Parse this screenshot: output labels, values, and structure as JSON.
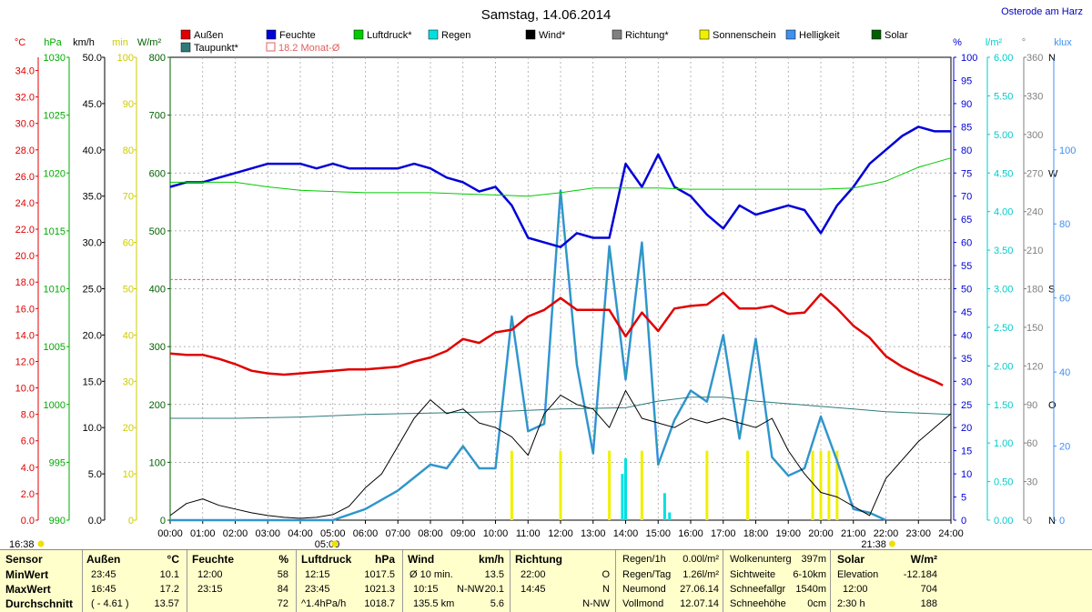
{
  "header": {
    "title": "Samstag, 14.06.2014",
    "location": "Osterode am Harz"
  },
  "legend": [
    {
      "label": "Außen",
      "color": "#e00000",
      "kind": "box"
    },
    {
      "label": "Feuchte",
      "color": "#0000d8",
      "kind": "box"
    },
    {
      "label": "Luftdruck*",
      "color": "#00cc00",
      "kind": "box"
    },
    {
      "label": "Regen",
      "color": "#00e0e0",
      "kind": "box"
    },
    {
      "label": "Wind*",
      "color": "#000000",
      "kind": "box"
    },
    {
      "label": "Richtung*",
      "color": "#808080",
      "kind": "box"
    },
    {
      "label": "Sonnenschein",
      "color": "#f0f000",
      "kind": "box"
    },
    {
      "label": "Helligkeit",
      "color": "#4090f0",
      "kind": "box"
    },
    {
      "label": "Solar",
      "color": "#006000",
      "kind": "box"
    },
    {
      "label": "Taupunkt*",
      "color": "#2e7a7a",
      "kind": "box"
    },
    {
      "label": "18.2 Monat-Ø",
      "color": "#e06060",
      "kind": "outline"
    }
  ],
  "axes": {
    "temp": {
      "unit": "°C",
      "color": "#e00000",
      "ticks": [
        "34.0",
        "32.0",
        "30.0",
        "28.0",
        "26.0",
        "24.0",
        "22.0",
        "20.0",
        "18.0",
        "16.0",
        "14.0",
        "12.0",
        "10.0",
        "8.0",
        "6.0",
        "4.0",
        "2.0",
        "0.0"
      ]
    },
    "pressure": {
      "unit": "hPa",
      "color": "#00aa00",
      "ticks": [
        "1030",
        "1025",
        "1020",
        "1015",
        "1010",
        "1005",
        "1000",
        "995",
        "990"
      ]
    },
    "wind": {
      "unit": "km/h",
      "color": "#000000",
      "ticks": [
        "50.0",
        "45.0",
        "40.0",
        "35.0",
        "30.0",
        "25.0",
        "20.0",
        "15.0",
        "10.0",
        "5.0",
        "0.0"
      ]
    },
    "min": {
      "unit": "min",
      "color": "#cccc00",
      "ticks": [
        "100",
        "90",
        "80",
        "70",
        "60",
        "50",
        "40",
        "30",
        "20",
        "10",
        "0"
      ]
    },
    "solar": {
      "unit": "W/m²",
      "color": "#006000",
      "ticks": [
        "800",
        "700",
        "600",
        "500",
        "400",
        "300",
        "200",
        "100",
        "0"
      ]
    },
    "humidity": {
      "unit": "%",
      "color": "#0000d8",
      "ticks": [
        "100",
        "95",
        "90",
        "85",
        "80",
        "75",
        "70",
        "65",
        "60",
        "55",
        "50",
        "45",
        "40",
        "35",
        "30",
        "25",
        "20",
        "15",
        "10",
        "5",
        "0"
      ]
    },
    "rain": {
      "unit": "l/m²",
      "color": "#00cccc",
      "ticks": [
        "6.00",
        "5.50",
        "5.00",
        "4.50",
        "4.00",
        "3.50",
        "3.00",
        "2.50",
        "2.00",
        "1.50",
        "1.00",
        "0.50",
        "0.00"
      ]
    },
    "direction": {
      "unit": "°",
      "color": "#808080",
      "ticks": [
        "360",
        "330",
        "300",
        "270",
        "240",
        "210",
        "180",
        "150",
        "120",
        "90",
        "60",
        "30",
        "0"
      ],
      "compass": [
        "N",
        "",
        "",
        "W",
        "",
        "",
        "S",
        "",
        "",
        "O",
        "",
        "",
        "N"
      ]
    },
    "lux": {
      "unit": "klux",
      "color": "#4090f0",
      "ticks": [
        "100",
        "80",
        "60",
        "40",
        "20",
        "0"
      ]
    }
  },
  "time_ticks": [
    "00:00",
    "01:00",
    "02:00",
    "03:00",
    "04:00",
    "05:00",
    "06:00",
    "07:00",
    "08:00",
    "09:00",
    "10:00",
    "11:00",
    "12:00",
    "13:00",
    "14:00",
    "15:00",
    "16:00",
    "17:00",
    "18:00",
    "19:00",
    "20:00",
    "21:00",
    "22:00",
    "23:00",
    "24:00"
  ],
  "sun": {
    "rise": "05:00",
    "set": "21:38",
    "label": "16:38"
  },
  "chart_data": {
    "type": "line",
    "title": "Samstag, 14.06.2014",
    "xlabel": "",
    "ylabel": "",
    "x_unit": "hours",
    "month_avg_temp": 18.2,
    "series": [
      {
        "name": "Außen",
        "unit": "°C",
        "color": "#e00000",
        "x": [
          0,
          0.5,
          1,
          1.5,
          2,
          2.5,
          3,
          3.5,
          4,
          4.5,
          5,
          5.5,
          6,
          6.5,
          7,
          7.5,
          8,
          8.5,
          9,
          9.5,
          10,
          10.5,
          11,
          11.5,
          12,
          12.5,
          13,
          13.5,
          14,
          14.5,
          15,
          15.5,
          16,
          16.5,
          17,
          17.5,
          18,
          18.5,
          19,
          19.5,
          20,
          20.5,
          21,
          21.5,
          22,
          22.5,
          23,
          23.5,
          23.75
        ],
        "y": [
          12.6,
          12.5,
          12.5,
          12.2,
          11.8,
          11.3,
          11.1,
          11.0,
          11.1,
          11.2,
          11.3,
          11.4,
          11.4,
          11.5,
          11.6,
          12.0,
          12.3,
          12.8,
          13.7,
          13.4,
          14.2,
          14.4,
          15.4,
          15.9,
          16.8,
          15.9,
          15.9,
          15.9,
          13.9,
          15.7,
          14.3,
          16.0,
          16.2,
          16.3,
          17.2,
          16.0,
          16.0,
          16.2,
          15.6,
          15.7,
          17.1,
          16.0,
          14.7,
          13.8,
          12.4,
          11.6,
          11.0,
          10.5,
          10.2
        ]
      },
      {
        "name": "Feuchte",
        "unit": "%",
        "color": "#0000d8",
        "x": [
          0,
          0.5,
          1,
          1.5,
          2,
          2.5,
          3,
          3.5,
          4,
          4.5,
          5,
          5.5,
          6,
          6.5,
          7,
          7.5,
          8,
          8.5,
          9,
          9.5,
          10,
          10.5,
          11,
          11.5,
          12,
          12.5,
          13,
          13.5,
          14,
          14.5,
          15,
          15.5,
          16,
          16.5,
          17,
          17.5,
          18,
          18.5,
          19,
          19.5,
          20,
          20.5,
          21,
          21.5,
          22,
          22.5,
          23,
          23.5,
          24
        ],
        "y": [
          72,
          73,
          73,
          74,
          75,
          76,
          77,
          77,
          77,
          76,
          77,
          76,
          76,
          76,
          76,
          77,
          76,
          74,
          73,
          71,
          72,
          68,
          61,
          60,
          59,
          62,
          61,
          61,
          77,
          72,
          79,
          72,
          70,
          66,
          63,
          68,
          66,
          67,
          68,
          67,
          62,
          68,
          72,
          77,
          80,
          83,
          85,
          84,
          84
        ]
      },
      {
        "name": "Luftdruck*",
        "unit": "hPa",
        "color": "#00cc00",
        "x": [
          0,
          1,
          2,
          3,
          4,
          5,
          6,
          7,
          8,
          9,
          10,
          11,
          12,
          13,
          14,
          15,
          16,
          17,
          18,
          19,
          20,
          21,
          22,
          23,
          24
        ],
        "y": [
          1019.2,
          1019.2,
          1019.2,
          1018.8,
          1018.5,
          1018.4,
          1018.3,
          1018.3,
          1018.3,
          1018.2,
          1018.1,
          1018.0,
          1018.3,
          1018.7,
          1018.7,
          1018.7,
          1018.6,
          1018.6,
          1018.6,
          1018.6,
          1018.6,
          1018.7,
          1019.3,
          1020.5,
          1021.3
        ]
      },
      {
        "name": "Taupunkt*",
        "unit": "°C",
        "color": "#2e7a7a",
        "x": [
          0,
          2,
          4,
          6,
          8,
          10,
          12,
          14,
          15,
          16,
          17,
          18,
          19,
          20,
          21,
          22,
          23,
          24
        ],
        "y": [
          7.7,
          7.7,
          7.8,
          8.0,
          8.1,
          8.2,
          8.4,
          8.5,
          9.0,
          9.3,
          9.3,
          9.0,
          8.8,
          8.6,
          8.4,
          8.2,
          8.1,
          8.0
        ]
      },
      {
        "name": "Wind*",
        "unit": "km/h",
        "color": "#000000",
        "x": [
          0,
          0.5,
          1,
          1.5,
          2,
          2.5,
          3,
          3.5,
          4,
          4.5,
          5,
          5.5,
          6,
          6.5,
          7,
          7.5,
          8,
          8.5,
          9,
          9.5,
          10,
          10.5,
          11,
          11.5,
          12,
          12.5,
          13,
          13.5,
          14,
          14.5,
          15,
          15.5,
          16,
          16.5,
          17,
          17.5,
          18,
          18.5,
          19,
          19.5,
          20,
          20.5,
          21,
          21.5,
          22,
          22.5,
          23,
          23.5,
          24
        ],
        "y": [
          0.5,
          1.8,
          2.3,
          1.6,
          1.2,
          0.8,
          0.5,
          0.3,
          0.2,
          0.3,
          0.6,
          1.5,
          3.5,
          5.0,
          8.0,
          11.0,
          13.0,
          11.5,
          12.0,
          10.5,
          10.0,
          9.0,
          7.0,
          11.5,
          13.5,
          12.5,
          12.0,
          10.0,
          14.0,
          11.0,
          10.5,
          10.0,
          11.0,
          10.5,
          11.0,
          10.5,
          10.0,
          11.0,
          7.5,
          5.0,
          3.0,
          2.5,
          1.5,
          0.5,
          4.5,
          6.5,
          8.5,
          10.0,
          11.5
        ]
      },
      {
        "name": "Regen",
        "unit": "l/m²",
        "color": "#00e0e0",
        "x": [
          13.9,
          14.0,
          15.2,
          15.35
        ],
        "y": [
          0.6,
          0.8,
          0.35,
          0.1
        ]
      },
      {
        "name": "Helligkeit",
        "unit": "klux",
        "color": "#4090f0",
        "x": [
          0,
          5,
          6,
          7,
          8,
          8.5,
          9,
          9.5,
          10,
          10.5,
          11,
          11.5,
          12,
          12.5,
          13,
          13.5,
          14,
          14.5,
          15,
          15.5,
          16,
          16.5,
          17,
          17.5,
          18,
          18.5,
          19,
          19.5,
          20,
          20.5,
          21,
          21.5,
          22
        ],
        "y": [
          0,
          0,
          3,
          8,
          15,
          14,
          20,
          14,
          14,
          55,
          24,
          26,
          89,
          42,
          18,
          74,
          38,
          75,
          15,
          27,
          35,
          32,
          50,
          22,
          49,
          17,
          12,
          14,
          28,
          16,
          3,
          2,
          0
        ]
      },
      {
        "name": "Sonnenschein",
        "unit": "min",
        "color": "#f0f000",
        "x": [
          10.5,
          12.0,
          13.5,
          14.5,
          16.5,
          17.75,
          19.75,
          20.0,
          20.25,
          20.5
        ],
        "y": [
          15,
          15,
          15,
          15,
          15,
          15,
          15,
          15,
          15,
          15
        ]
      }
    ]
  },
  "table": {
    "sensor": {
      "header": "Sensor",
      "rows": [
        "MinWert",
        "MaxWert",
        "Durchschnitt"
      ]
    },
    "aussen": {
      "header": "Außen",
      "unit": "°C",
      "time": [
        "23:45",
        "16:45",
        "( - 4.61 )"
      ],
      "val": [
        "10.1",
        "17.2",
        "13.57"
      ]
    },
    "feuchte": {
      "header": "Feuchte",
      "unit": "%",
      "time": [
        "12:00",
        "23:15",
        ""
      ],
      "val": [
        "58",
        "84",
        "72"
      ]
    },
    "luftdruck": {
      "header": "Luftdruck",
      "unit": "hPa",
      "time": [
        "12:15",
        "23:45",
        "^1.4hPa/h"
      ],
      "val": [
        "1017.5",
        "1021.3",
        "1018.7"
      ]
    },
    "wind": {
      "header": "Wind",
      "unit": "km/h",
      "time": [
        "Ø 10 min.",
        "10:15",
        "135.5 km"
      ],
      "mid": [
        "",
        "N-NW",
        ""
      ],
      "val": [
        "13.5",
        "20.1",
        "5.6"
      ]
    },
    "richtung": {
      "header": "Richtung",
      "time": [
        "22:00",
        "14:45",
        ""
      ],
      "val": [
        "O",
        "N",
        "N-NW"
      ]
    },
    "regen": {
      "labels": [
        "Regen/1h",
        "Regen/Tag",
        "Neumond",
        "Vollmond"
      ],
      "vals": [
        "0.00l/m²",
        "1.26l/m²",
        "27.06.14",
        "12.07.14"
      ]
    },
    "wolken": {
      "labels": [
        "Wolkenunterg",
        "Sichtweite",
        "Schneefallgr",
        "Schneehöhe"
      ],
      "vals": [
        "397m",
        "6-10km",
        "1540m",
        "0cm"
      ]
    },
    "solar": {
      "header": "Solar",
      "unit": "W/m²",
      "labels": [
        "Elevation",
        "12:00",
        "2:30 h"
      ],
      "vals": [
        "-12.184",
        "704",
        "188"
      ]
    }
  }
}
